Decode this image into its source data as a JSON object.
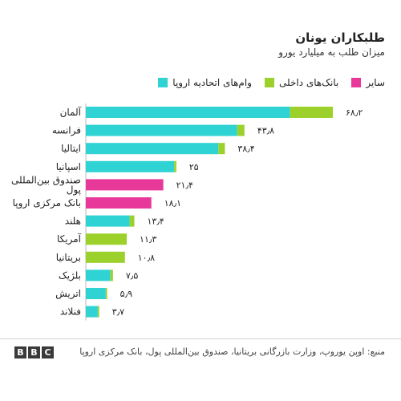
{
  "chart_data": {
    "type": "bar",
    "orientation": "horizontal",
    "stacked": true,
    "title": "طلبکاران یونان",
    "subtitle": "میزان طلب به میلیارد یورو",
    "legend": [
      {
        "name": "وام‌های اتحادیه اروپا",
        "color": "#2fd3d3"
      },
      {
        "name": "بانک‌های داخلی",
        "color": "#9cd12b"
      },
      {
        "name": "سایر",
        "color": "#e8399b"
      }
    ],
    "categories": [
      "آلمان",
      "فرانسه",
      "ایتالیا",
      "اسپانیا",
      "صندوق بین‌المللی پول",
      "بانک مرکزی اروپا",
      "هلند",
      "آمریکا",
      "بریتانیا",
      "بلژیک",
      "اتریش",
      "فنلاند"
    ],
    "category_lines": [
      [
        "آلمان"
      ],
      [
        "فرانسه"
      ],
      [
        "ایتالیا"
      ],
      [
        "اسپانیا"
      ],
      [
        "صندوق بین‌المللی",
        "پول"
      ],
      [
        "بانک مرکزی اروپا"
      ],
      [
        "هلند"
      ],
      [
        "آمریکا"
      ],
      [
        "بریتانیا"
      ],
      [
        "بلژیک"
      ],
      [
        "اتریش"
      ],
      [
        "فنلاند"
      ]
    ],
    "labels": [
      "۶۸٫۲",
      "۴۳٫۸",
      "۳۸٫۴",
      "۲۵",
      "۲۱٫۴",
      "۱۸٫۱",
      "۱۳٫۴",
      "۱۱٫۳",
      "۱۰٫۸",
      "۷٫۵",
      "۵٫۹",
      "۳٫۷"
    ],
    "series": [
      {
        "name": "وام‌های اتحادیه اروپا",
        "color": "#2fd3d3",
        "values": [
          56.4,
          41.8,
          36.6,
          24.4,
          0,
          0,
          12.1,
          0,
          0,
          6.8,
          5.5,
          3.3
        ]
      },
      {
        "name": "بانک‌های داخلی",
        "color": "#9cd12b",
        "values": [
          11.8,
          2.0,
          1.8,
          0.6,
          0,
          0,
          1.3,
          11.3,
          10.8,
          0.7,
          0.4,
          0.4
        ]
      },
      {
        "name": "سایر",
        "color": "#e8399b",
        "values": [
          0,
          0,
          0,
          0,
          21.4,
          18.1,
          0,
          0,
          0,
          0,
          0,
          0
        ]
      }
    ],
    "xlim": [
      0,
      68.2
    ],
    "grid": false,
    "legend_position": "top-right"
  },
  "source": "منبع: اوپن یوروپ، وزارت بازرگانی بریتانیا، صندوق بین‌المللی پول، بانک مرکزی اروپا",
  "logo": [
    "B",
    "B",
    "C"
  ]
}
